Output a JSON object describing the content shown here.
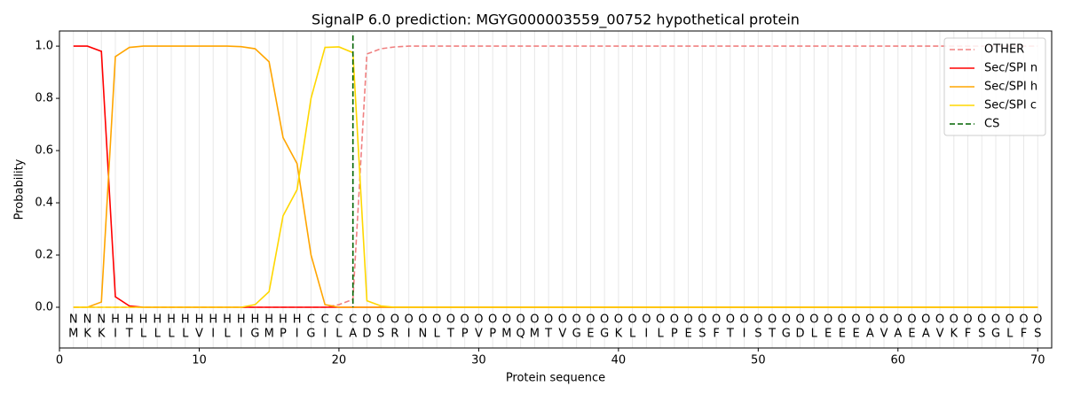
{
  "chart_data": {
    "type": "line",
    "title": "SignalP 6.0 prediction: MGYG000003559_00752 hypothetical protein",
    "xlabel": "Protein sequence",
    "ylabel": "Probability",
    "x": [
      1,
      2,
      3,
      4,
      5,
      6,
      7,
      8,
      9,
      10,
      11,
      12,
      13,
      14,
      15,
      16,
      17,
      18,
      19,
      20,
      21,
      22,
      23,
      24,
      25,
      26,
      27,
      28,
      29,
      30,
      31,
      32,
      33,
      34,
      35,
      36,
      37,
      38,
      39,
      40,
      41,
      42,
      43,
      44,
      45,
      46,
      47,
      48,
      49,
      50,
      51,
      52,
      53,
      54,
      55,
      56,
      57,
      58,
      59,
      60,
      61,
      62,
      63,
      64,
      65,
      66,
      67,
      68,
      69,
      70
    ],
    "residues": [
      "M",
      "K",
      "K",
      "I",
      "T",
      "L",
      "L",
      "L",
      "L",
      "V",
      "I",
      "L",
      "I",
      "G",
      "M",
      "P",
      "I",
      "G",
      "I",
      "L",
      "A",
      "D",
      "S",
      "R",
      "I",
      "N",
      "L",
      "T",
      "P",
      "V",
      "P",
      "M",
      "Q",
      "M",
      "T",
      "V",
      "G",
      "E",
      "G",
      "K",
      "L",
      "I",
      "L",
      "P",
      "E",
      "S",
      "F",
      "T",
      "I",
      "S",
      "T",
      "G",
      "D",
      "L",
      "E",
      "E",
      "E",
      "A",
      "V",
      "A",
      "E",
      "A",
      "V",
      "K",
      "F",
      "S",
      "G",
      "L",
      "F",
      "S"
    ],
    "labels": [
      "N",
      "N",
      "N",
      "H",
      "H",
      "H",
      "H",
      "H",
      "H",
      "H",
      "H",
      "H",
      "H",
      "H",
      "H",
      "H",
      "H",
      "C",
      "C",
      "C",
      "C",
      "O",
      "O",
      "O",
      "O",
      "O",
      "O",
      "O",
      "O",
      "O",
      "O",
      "O",
      "O",
      "O",
      "O",
      "O",
      "O",
      "O",
      "O",
      "O",
      "O",
      "O",
      "O",
      "O",
      "O",
      "O",
      "O",
      "O",
      "O",
      "O",
      "O",
      "O",
      "O",
      "O",
      "O",
      "O",
      "O",
      "O",
      "O",
      "O",
      "O",
      "O",
      "O",
      "O",
      "O",
      "O",
      "O",
      "O",
      "O",
      "O"
    ],
    "label_colors": {
      "N": "red",
      "H": "orange",
      "C": "#e6b800",
      "O": "gray"
    },
    "series": [
      {
        "name": "OTHER",
        "color": "lightcoral",
        "linestyle": "dashed",
        "values": [
          0,
          0,
          0,
          0,
          0,
          0,
          0,
          0,
          0,
          0,
          0,
          0,
          0,
          0,
          0,
          0,
          0,
          0,
          0,
          0.01,
          0.03,
          0.97,
          0.99,
          0.997,
          1,
          1,
          1,
          1,
          1,
          1,
          1,
          1,
          1,
          1,
          1,
          1,
          1,
          1,
          1,
          1,
          1,
          1,
          1,
          1,
          1,
          1,
          1,
          1,
          1,
          1,
          1,
          1,
          1,
          1,
          1,
          1,
          1,
          1,
          1,
          1,
          1,
          1,
          1,
          1,
          1,
          1,
          1,
          1,
          1,
          1
        ]
      },
      {
        "name": "Sec/SPI n",
        "color": "red",
        "linestyle": "solid",
        "values": [
          1,
          1,
          0.98,
          0.04,
          0.005,
          0,
          0,
          0,
          0,
          0,
          0,
          0,
          0,
          0,
          0,
          0,
          0,
          0,
          0,
          0,
          0,
          0,
          0,
          0,
          0,
          0,
          0,
          0,
          0,
          0,
          0,
          0,
          0,
          0,
          0,
          0,
          0,
          0,
          0,
          0,
          0,
          0,
          0,
          0,
          0,
          0,
          0,
          0,
          0,
          0,
          0,
          0,
          0,
          0,
          0,
          0,
          0,
          0,
          0,
          0,
          0,
          0,
          0,
          0,
          0,
          0,
          0,
          0,
          0,
          0
        ]
      },
      {
        "name": "Sec/SPI h",
        "color": "orange",
        "linestyle": "solid",
        "values": [
          0,
          0,
          0.02,
          0.96,
          0.995,
          1,
          1,
          1,
          1,
          1,
          1,
          1,
          0.998,
          0.99,
          0.94,
          0.65,
          0.55,
          0.2,
          0.01,
          0,
          0,
          0,
          0,
          0,
          0,
          0,
          0,
          0,
          0,
          0,
          0,
          0,
          0,
          0,
          0,
          0,
          0,
          0,
          0,
          0,
          0,
          0,
          0,
          0,
          0,
          0,
          0,
          0,
          0,
          0,
          0,
          0,
          0,
          0,
          0,
          0,
          0,
          0,
          0,
          0,
          0,
          0,
          0,
          0,
          0,
          0,
          0,
          0,
          0,
          0
        ]
      },
      {
        "name": "Sec/SPI c",
        "color": "gold",
        "linestyle": "solid",
        "values": [
          0,
          0,
          0,
          0,
          0,
          0,
          0,
          0,
          0,
          0,
          0,
          0,
          0,
          0.01,
          0.06,
          0.35,
          0.45,
          0.8,
          0.995,
          0.997,
          0.975,
          0.025,
          0.005,
          0,
          0,
          0,
          0,
          0,
          0,
          0,
          0,
          0,
          0,
          0,
          0,
          0,
          0,
          0,
          0,
          0,
          0,
          0,
          0,
          0,
          0,
          0,
          0,
          0,
          0,
          0,
          0,
          0,
          0,
          0,
          0,
          0,
          0,
          0,
          0,
          0,
          0,
          0,
          0,
          0,
          0,
          0,
          0,
          0,
          0,
          0
        ]
      }
    ],
    "cs": {
      "name": "CS",
      "x": 21,
      "color": "darkgreen"
    },
    "xlim": [
      0,
      71
    ],
    "ylim": [
      -0.156,
      1.058
    ],
    "xticks": [
      0,
      10,
      20,
      30,
      40,
      50,
      60,
      70
    ],
    "yticks": [
      {
        "value": 0,
        "label": "0.0"
      },
      0.2,
      0.4,
      0.6,
      0.8,
      {
        "value": 1,
        "label": "1.0"
      }
    ],
    "legend": "upper right"
  }
}
